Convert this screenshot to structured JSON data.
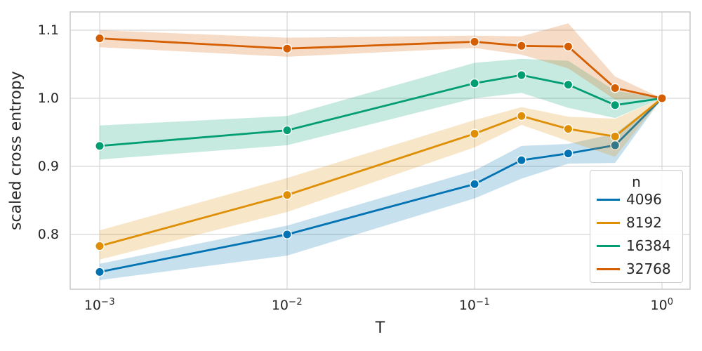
{
  "chart_data": {
    "type": "line",
    "x_scale": "log",
    "xlabel": "T",
    "ylabel": "scaled cross entropy",
    "legend_title": "n",
    "legend_position": "lower right",
    "grid": true,
    "xlim": [
      0.0007,
      1.41
    ],
    "ylim": [
      0.72,
      1.127
    ],
    "x": [
      0.001,
      0.01,
      0.1,
      0.178,
      0.316,
      0.562,
      1.0
    ],
    "x_ticks": [
      {
        "value": 0.001,
        "base": "10",
        "exp": "−3"
      },
      {
        "value": 0.01,
        "base": "10",
        "exp": "−2"
      },
      {
        "value": 0.1,
        "base": "10",
        "exp": "−1"
      },
      {
        "value": 1.0,
        "base": "10",
        "exp": "0"
      }
    ],
    "y_ticks": [
      {
        "value": 0.8,
        "label": "0.8"
      },
      {
        "value": 0.9,
        "label": "0.9"
      },
      {
        "value": 1.0,
        "label": "1.0"
      },
      {
        "value": 1.1,
        "label": "1.1"
      }
    ],
    "series": [
      {
        "name": "4096",
        "color": "#0173b2",
        "values": [
          0.745,
          0.8,
          0.874,
          0.909,
          0.919,
          0.931,
          1.0
        ],
        "ci_lower": [
          0.733,
          0.769,
          0.853,
          0.882,
          0.904,
          0.905,
          1.0
        ],
        "ci_upper": [
          0.757,
          0.813,
          0.894,
          0.93,
          0.933,
          0.948,
          1.0
        ]
      },
      {
        "name": "8192",
        "color": "#de8f05",
        "values": [
          0.783,
          0.858,
          0.948,
          0.974,
          0.955,
          0.944,
          1.0
        ],
        "ci_lower": [
          0.763,
          0.833,
          0.928,
          0.961,
          0.937,
          0.914,
          1.0
        ],
        "ci_upper": [
          0.806,
          0.883,
          0.968,
          0.987,
          0.973,
          0.97,
          1.0
        ]
      },
      {
        "name": "16384",
        "color": "#029e73",
        "values": [
          0.93,
          0.953,
          1.022,
          1.034,
          1.02,
          0.99,
          1.0
        ],
        "ci_lower": [
          0.91,
          0.931,
          1.0,
          1.008,
          0.986,
          0.971,
          1.0
        ],
        "ci_upper": [
          0.96,
          0.974,
          1.052,
          1.058,
          1.055,
          1.011,
          1.0
        ]
      },
      {
        "name": "32768",
        "color": "#d55e00",
        "values": [
          1.088,
          1.073,
          1.083,
          1.077,
          1.076,
          1.015,
          1.0
        ],
        "ci_lower": [
          1.075,
          1.061,
          1.074,
          1.064,
          1.044,
          0.998,
          1.0
        ],
        "ci_upper": [
          1.1,
          1.089,
          1.092,
          1.091,
          1.11,
          1.032,
          1.0
        ]
      }
    ]
  }
}
